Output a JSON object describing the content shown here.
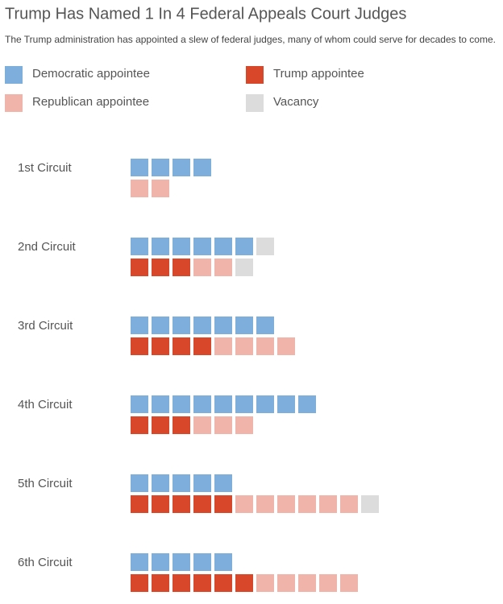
{
  "chart_data": {
    "type": "waffle",
    "title": "Trump Has Named 1 In 4 Federal Appeals Court Judges",
    "subtitle": "The Trump administration has appointed a slew of federal judges, many of whom could serve for decades to come.",
    "categories": [
      "1st Circuit",
      "2nd Circuit",
      "3rd Circuit",
      "4th Circuit",
      "5th Circuit",
      "6th Circuit"
    ],
    "series": [
      {
        "name": "Democratic appointee",
        "color": "#7eaedc",
        "row": "top",
        "values": [
          4,
          6,
          7,
          9,
          5,
          5
        ]
      },
      {
        "name": "Trump appointee",
        "color": "#d9472b",
        "row": "bottom",
        "values": [
          0,
          3,
          4,
          3,
          5,
          6
        ]
      },
      {
        "name": "Republican appointee",
        "color": "#f0b4aa",
        "row": "bottom",
        "values": [
          2,
          2,
          4,
          3,
          6,
          5
        ]
      },
      {
        "name": "Vacancy",
        "color": "#dcdcdc",
        "row": "top",
        "values": [
          0,
          1,
          0,
          0,
          0,
          0
        ]
      },
      {
        "color": "#dcdcdc",
        "row": "bottom",
        "values": [
          0,
          1,
          0,
          0,
          1,
          0
        ]
      }
    ]
  }
}
